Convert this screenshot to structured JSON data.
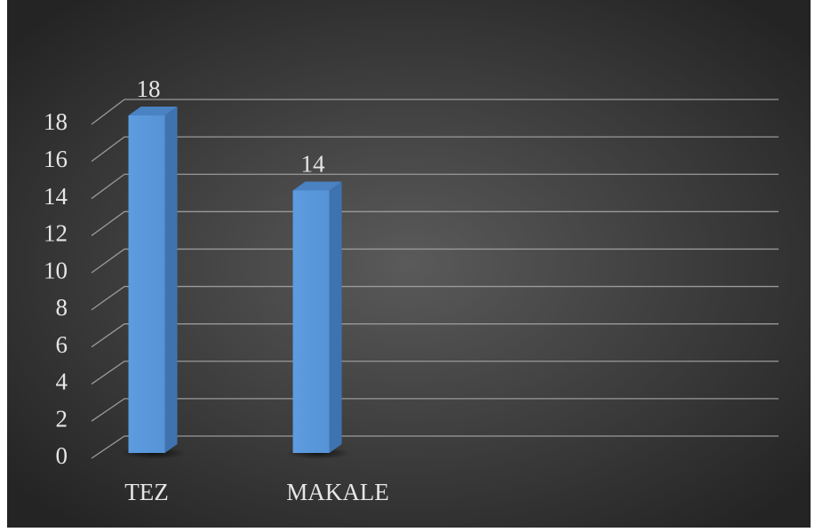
{
  "chart_data": {
    "type": "bar3d",
    "categories": [
      "TEZ",
      "MAKALE"
    ],
    "values": [
      18,
      14
    ],
    "color": "#5b9bd5",
    "ylim": [
      0,
      18
    ],
    "yticks": [
      0,
      2,
      4,
      6,
      8,
      10,
      12,
      14,
      16,
      18
    ],
    "grid": true
  }
}
